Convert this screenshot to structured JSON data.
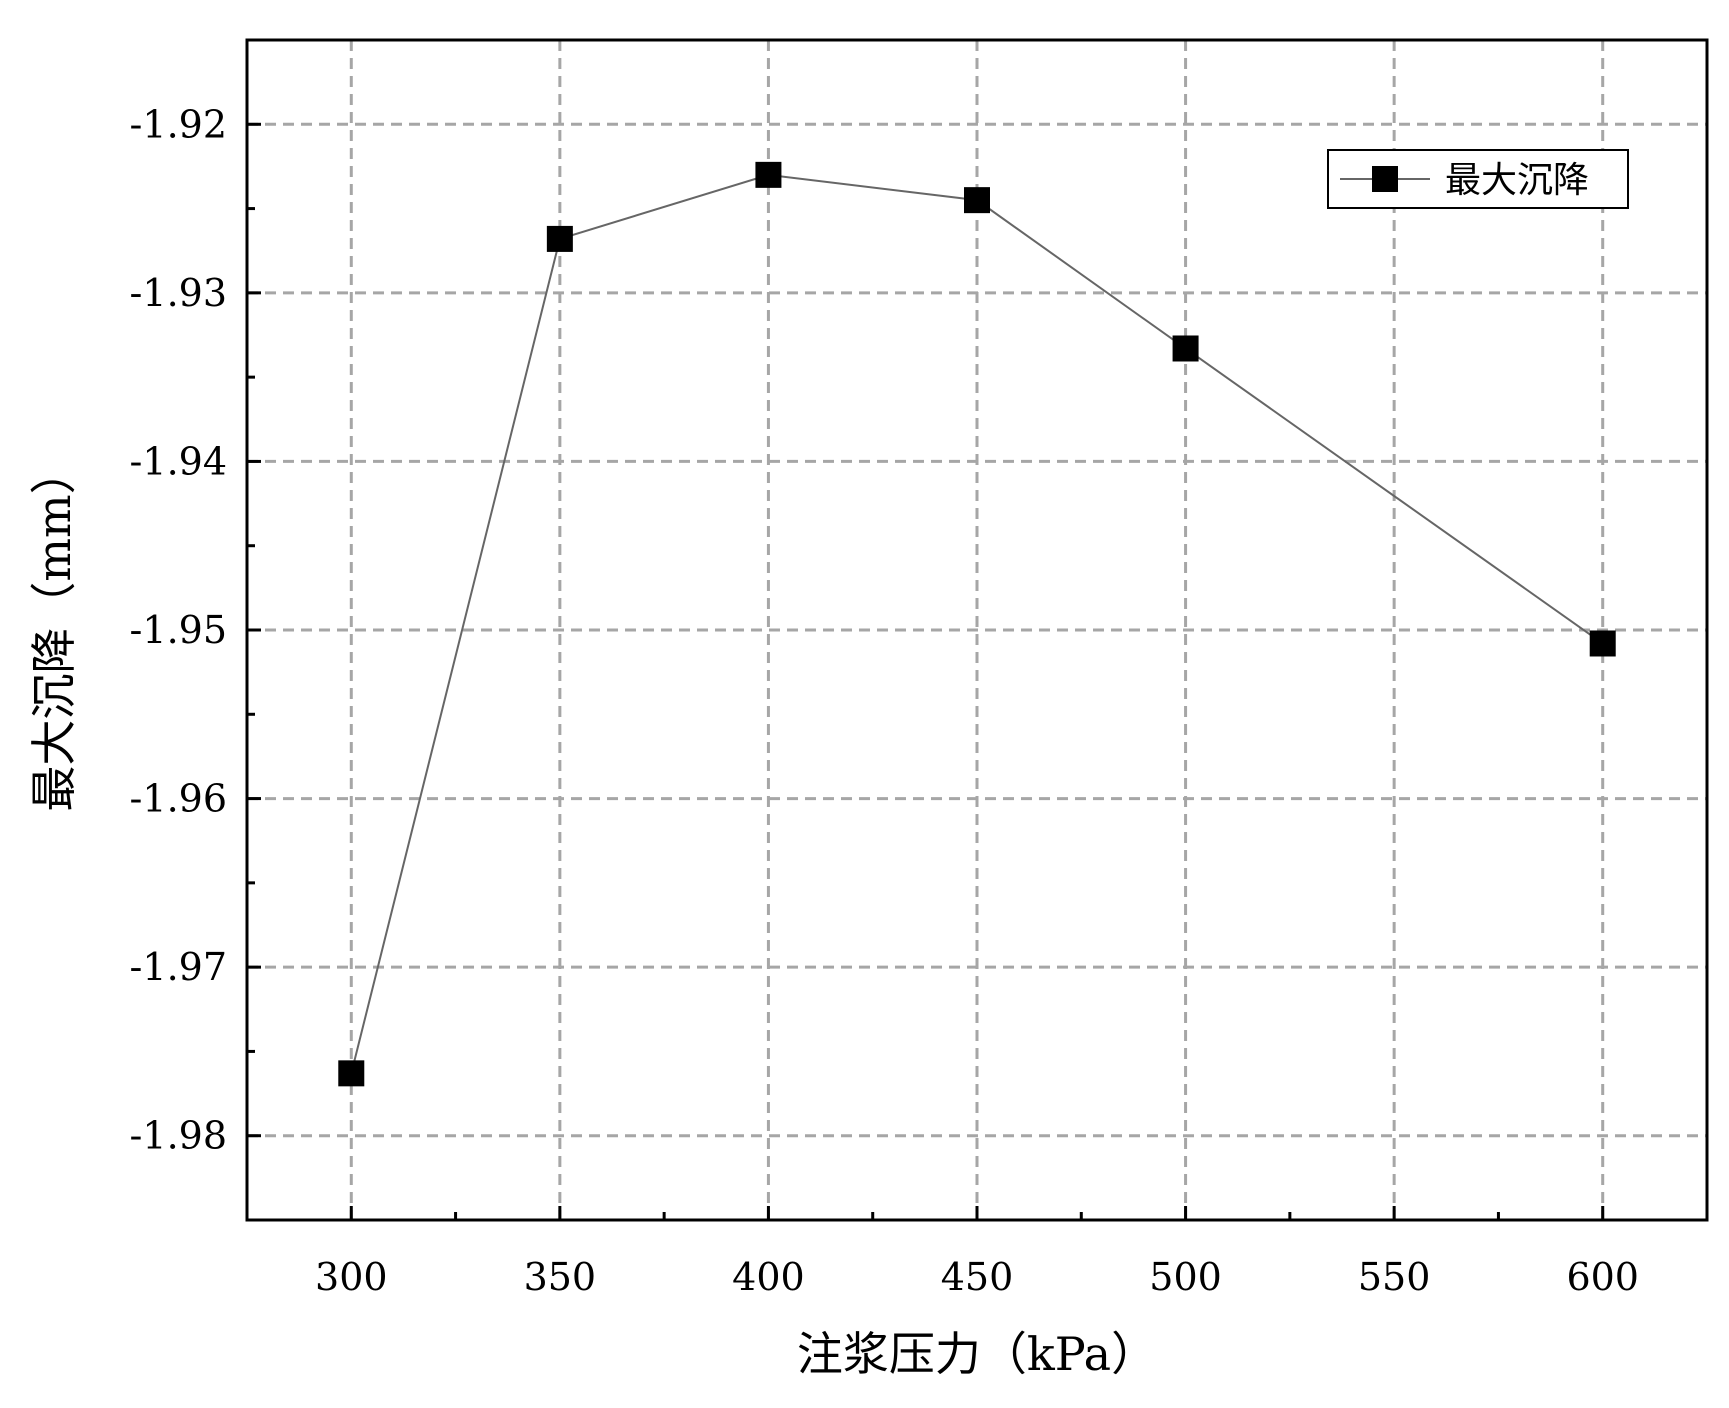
{
  "chart_data": {
    "type": "line",
    "x": [
      300,
      350,
      400,
      450,
      500,
      600
    ],
    "series": [
      {
        "name": "最大沉降",
        "values": [
          -1.9763,
          -1.9268,
          -1.923,
          -1.9245,
          -1.9333,
          -1.9508
        ]
      }
    ],
    "title": "",
    "xlabel": "注浆压力（kPa）",
    "ylabel": "最大沉降（mm）",
    "xlim": [
      275,
      625
    ],
    "ylim": [
      -1.985,
      -1.915
    ],
    "x_ticks": [
      "300",
      "350",
      "400",
      "450",
      "500",
      "550",
      "600"
    ],
    "y_ticks": [
      "-1.92",
      "-1.93",
      "-1.94",
      "-1.95",
      "-1.96",
      "-1.97",
      "-1.98"
    ],
    "grid": true,
    "legend_position": "top-right",
    "marker": "square",
    "colors": {
      "line": "#666666",
      "marker": "#000000",
      "grid": "#a6a6a6",
      "axis": "#000000"
    }
  }
}
